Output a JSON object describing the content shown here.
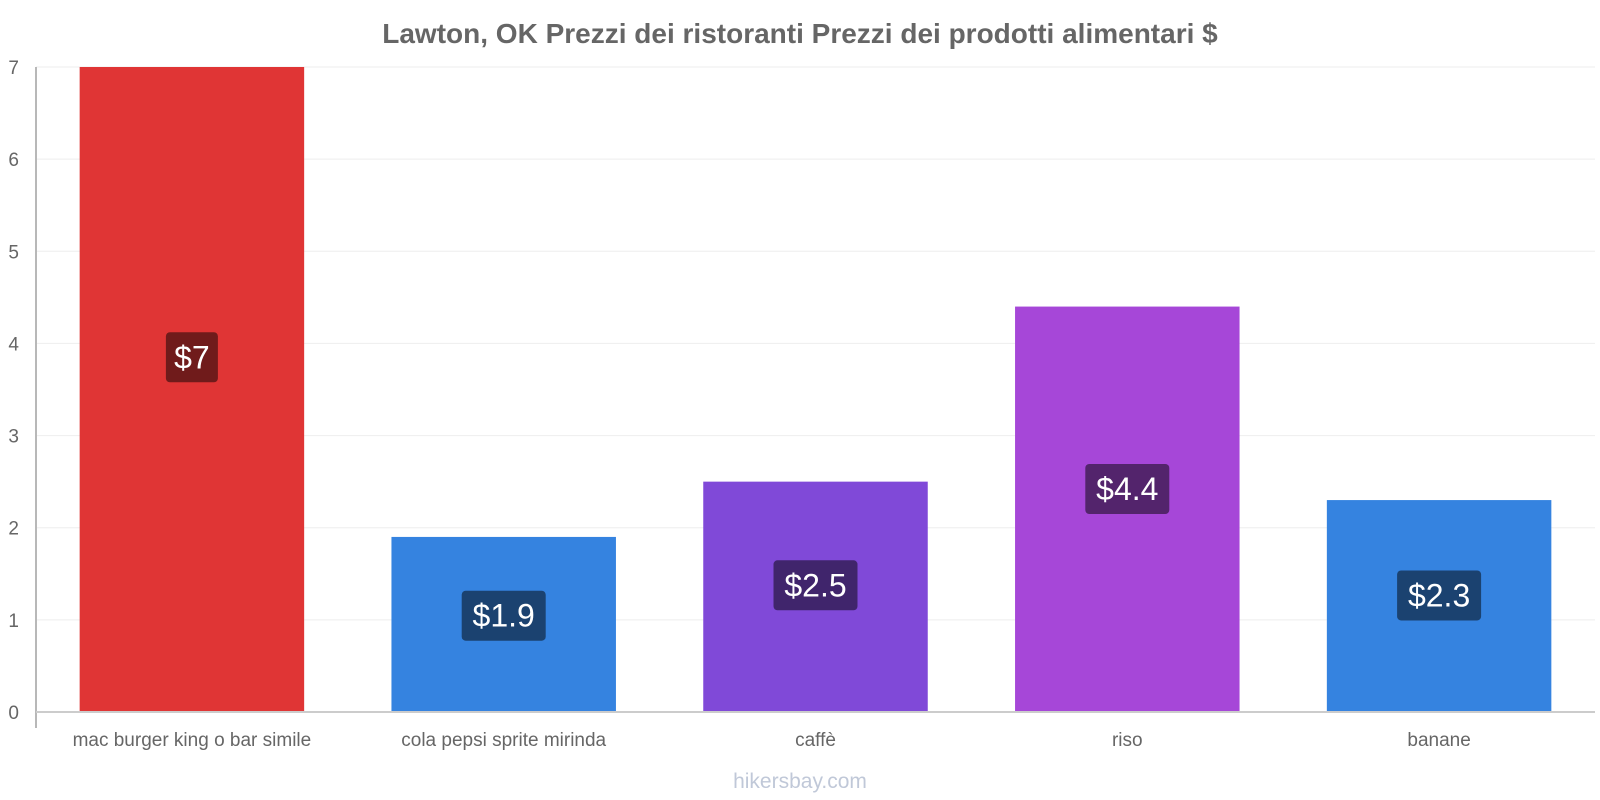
{
  "chart_data": {
    "type": "bar",
    "title": "Lawton, OK Prezzi dei ristoranti Prezzi dei prodotti alimentari $",
    "categories": [
      "mac burger king o bar simile",
      "cola pepsi sprite mirinda",
      "caffè",
      "riso",
      "banane"
    ],
    "values": [
      7,
      1.9,
      2.5,
      4.4,
      2.3
    ],
    "value_labels": [
      "$7",
      "$1.9",
      "$2.5",
      "$4.4",
      "$2.3"
    ],
    "bar_colors": [
      "#e03535",
      "#3583e0",
      "#8049d8",
      "#a647d8",
      "#3583e0"
    ],
    "label_bg_colors": [
      "#701b1b",
      "#1b4270",
      "#40256c",
      "#53246c",
      "#1b4270"
    ],
    "ylim": [
      0,
      7
    ],
    "yticks": [
      0,
      1,
      2,
      3,
      4,
      5,
      6,
      7
    ],
    "xlabel": "",
    "ylabel": "",
    "grid": true
  },
  "footer": "hikersbay.com"
}
